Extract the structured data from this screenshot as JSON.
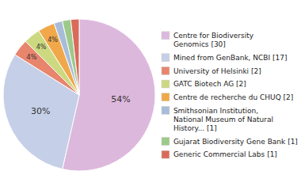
{
  "chart_data": {
    "type": "pie",
    "categories": [
      "Centre for Biodiversity\nGenomics [30]",
      "Mined from GenBank, NCBI [17]",
      "University of Helsinki [2]",
      "GATC Biotech AG [2]",
      "Centre de recherche du CHUQ [2]",
      "Smithsonian Institution,\nNational Museum of Natural\nHistory... [1]",
      "Gujarat Biodiversity Gene Bank [1]",
      "Generic Commercial Labs [1]"
    ],
    "values": [
      53.57,
      30.36,
      3.57,
      3.57,
      3.57,
      1.79,
      1.79,
      1.79
    ],
    "value_labels": [
      "54%",
      "30%",
      "4%",
      "4%",
      "4%",
      null,
      null,
      null
    ],
    "colors": [
      "#ddb8dd",
      "#c5d0e8",
      "#e8856d",
      "#ccd980",
      "#f0a84a",
      "#a8bcd9",
      "#9dc98a",
      "#d96b5a"
    ],
    "data_labels": true,
    "legend": "right"
  }
}
